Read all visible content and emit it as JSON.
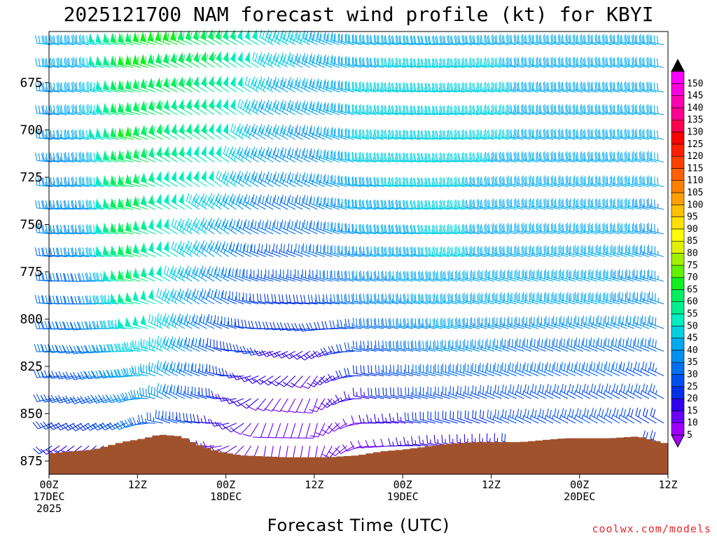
{
  "chart_data": {
    "type": "wind-barb-profile",
    "title": "2025121700 NAM forecast wind profile (kt) for KBYI",
    "xlabel": "Forecast Time (UTC)",
    "ylabel": "",
    "y_axis": {
      "unit": "hPa",
      "inverted": true,
      "range": [
        882,
        648
      ],
      "ticks": [
        675,
        700,
        725,
        750,
        775,
        800,
        825,
        850,
        875
      ]
    },
    "x_axis": {
      "unit": "forecast hour",
      "range": [
        0,
        84
      ],
      "ticks": [
        {
          "hour": 0,
          "line1": "00Z",
          "line2": "17DEC",
          "line3": "2025"
        },
        {
          "hour": 12,
          "line1": "12Z",
          "line2": "",
          "line3": ""
        },
        {
          "hour": 24,
          "line1": "00Z",
          "line2": "18DEC",
          "line3": ""
        },
        {
          "hour": 36,
          "line1": "12Z",
          "line2": "",
          "line3": ""
        },
        {
          "hour": 48,
          "line1": "00Z",
          "line2": "19DEC",
          "line3": ""
        },
        {
          "hour": 60,
          "line1": "12Z",
          "line2": "",
          "line3": ""
        },
        {
          "hour": 72,
          "line1": "00Z",
          "line2": "20DEC",
          "line3": ""
        },
        {
          "hour": 84,
          "line1": "12Z",
          "line2": "",
          "line3": ""
        }
      ]
    },
    "levels_hpa": [
      655,
      667,
      680,
      692,
      705,
      717,
      730,
      742,
      755,
      767,
      780,
      792,
      805,
      817,
      830,
      842,
      855,
      867
    ],
    "hours_step": 1,
    "wind_key_times": [
      {
        "hour": 0,
        "speed": [
          38,
          38,
          36,
          36,
          34,
          34,
          34,
          32,
          32,
          30,
          30,
          30,
          28,
          28,
          26,
          25,
          22,
          18
        ],
        "dir": [
          275,
          275,
          275,
          275,
          275,
          275,
          275,
          275,
          275,
          275,
          275,
          275,
          270,
          270,
          265,
          260,
          250,
          240
        ]
      },
      {
        "hour": 6,
        "speed": [
          42,
          42,
          40,
          40,
          40,
          38,
          38,
          36,
          36,
          34,
          32,
          30,
          30,
          28,
          26,
          24,
          20,
          16
        ],
        "dir": [
          280,
          280,
          280,
          280,
          278,
          278,
          278,
          275,
          275,
          275,
          270,
          270,
          265,
          260,
          255,
          250,
          240,
          230
        ]
      },
      {
        "hour": 12,
        "speed": [
          62,
          64,
          62,
          62,
          64,
          62,
          62,
          62,
          62,
          62,
          60,
          55,
          50,
          46,
          42,
          36,
          28,
          18
        ],
        "dir": [
          282,
          282,
          282,
          282,
          282,
          282,
          280,
          280,
          280,
          280,
          280,
          278,
          275,
          270,
          265,
          255,
          245,
          235
        ]
      },
      {
        "hour": 17,
        "speed": [
          64,
          62,
          60,
          58,
          58,
          55,
          52,
          52,
          50,
          50,
          48,
          46,
          46,
          44,
          40,
          34,
          26,
          20
        ],
        "dir": [
          290,
          292,
          295,
          298,
          300,
          300,
          300,
          300,
          300,
          300,
          300,
          300,
          300,
          300,
          300,
          300,
          290,
          280
        ]
      },
      {
        "hour": 24,
        "speed": [
          60,
          58,
          56,
          54,
          52,
          50,
          48,
          44,
          40,
          38,
          35,
          30,
          26,
          22,
          20,
          18,
          15,
          12
        ],
        "dir": [
          300,
          305,
          305,
          305,
          305,
          305,
          305,
          305,
          305,
          305,
          300,
          300,
          295,
          290,
          285,
          280,
          270,
          260
        ]
      },
      {
        "hour": 30,
        "speed": [
          48,
          46,
          44,
          42,
          40,
          38,
          36,
          32,
          28,
          26,
          24,
          22,
          20,
          18,
          14,
          12,
          10,
          10
        ],
        "dir": [
          300,
          300,
          300,
          300,
          300,
          300,
          300,
          298,
          295,
          290,
          285,
          280,
          270,
          255,
          240,
          220,
          200,
          190
        ]
      },
      {
        "hour": 37,
        "speed": [
          42,
          40,
          38,
          38,
          36,
          36,
          34,
          32,
          30,
          28,
          26,
          22,
          18,
          14,
          12,
          10,
          10,
          8
        ],
        "dir": [
          295,
          295,
          295,
          295,
          295,
          295,
          295,
          295,
          295,
          290,
          285,
          275,
          260,
          235,
          215,
          200,
          195,
          190
        ]
      },
      {
        "hour": 44,
        "speed": [
          40,
          42,
          44,
          44,
          44,
          44,
          42,
          40,
          38,
          36,
          34,
          32,
          28,
          24,
          20,
          16,
          12,
          10
        ],
        "dir": [
          280,
          280,
          280,
          280,
          280,
          278,
          278,
          278,
          278,
          280,
          280,
          280,
          280,
          280,
          280,
          280,
          270,
          260
        ]
      },
      {
        "hour": 54,
        "speed": [
          42,
          44,
          46,
          46,
          46,
          46,
          44,
          44,
          44,
          44,
          42,
          40,
          38,
          34,
          30,
          26,
          20,
          15
        ],
        "dir": [
          275,
          275,
          275,
          275,
          275,
          275,
          275,
          275,
          275,
          278,
          280,
          280,
          280,
          282,
          285,
          285,
          285,
          280
        ]
      },
      {
        "hour": 66,
        "speed": [
          40,
          42,
          42,
          42,
          42,
          40,
          40,
          40,
          40,
          40,
          38,
          38,
          36,
          32,
          28,
          26,
          24,
          18
        ],
        "dir": [
          280,
          280,
          280,
          280,
          280,
          280,
          282,
          282,
          282,
          282,
          285,
          285,
          285,
          290,
          292,
          295,
          295,
          290
        ]
      },
      {
        "hour": 78,
        "speed": [
          40,
          40,
          40,
          40,
          40,
          40,
          40,
          40,
          40,
          40,
          38,
          38,
          36,
          32,
          28,
          26,
          24,
          20
        ],
        "dir": [
          280,
          280,
          280,
          280,
          280,
          280,
          282,
          282,
          282,
          285,
          285,
          285,
          290,
          292,
          295,
          298,
          300,
          300
        ]
      },
      {
        "hour": 84,
        "speed": [
          38,
          38,
          38,
          38,
          38,
          38,
          38,
          36,
          36,
          36,
          34,
          34,
          32,
          30,
          26,
          24,
          20,
          18
        ],
        "dir": [
          280,
          280,
          280,
          280,
          280,
          282,
          282,
          282,
          282,
          285,
          285,
          288,
          290,
          292,
          295,
          298,
          300,
          300
        ]
      }
    ],
    "terrain_surface_hpa": [
      {
        "hour": 0,
        "p": 871
      },
      {
        "hour": 6,
        "p": 869
      },
      {
        "hour": 10,
        "p": 865
      },
      {
        "hour": 13,
        "p": 863
      },
      {
        "hour": 15,
        "p": 861
      },
      {
        "hour": 18,
        "p": 862
      },
      {
        "hour": 20,
        "p": 866
      },
      {
        "hour": 23,
        "p": 870
      },
      {
        "hour": 26,
        "p": 872
      },
      {
        "hour": 32,
        "p": 873
      },
      {
        "hour": 38,
        "p": 873
      },
      {
        "hour": 42,
        "p": 872
      },
      {
        "hour": 45,
        "p": 870
      },
      {
        "hour": 48,
        "p": 869
      },
      {
        "hour": 54,
        "p": 866
      },
      {
        "hour": 58,
        "p": 865
      },
      {
        "hour": 64,
        "p": 865
      },
      {
        "hour": 70,
        "p": 863
      },
      {
        "hour": 76,
        "p": 863
      },
      {
        "hour": 80,
        "p": 862
      },
      {
        "hour": 84,
        "p": 866
      }
    ],
    "colorbar": {
      "labels": [
        5,
        10,
        15,
        20,
        25,
        30,
        35,
        40,
        45,
        50,
        55,
        60,
        65,
        70,
        75,
        80,
        85,
        90,
        95,
        100,
        105,
        110,
        115,
        120,
        125,
        130,
        135,
        140,
        145,
        150
      ],
      "colors": [
        "#a000ff",
        "#6a00ff",
        "#2f00ee",
        "#0030e8",
        "#0050f0",
        "#0070f0",
        "#0090f0",
        "#00aaf0",
        "#00d0e0",
        "#00eec0",
        "#00f090",
        "#00f060",
        "#10f020",
        "#60f000",
        "#a0f000",
        "#e0f000",
        "#ffff00",
        "#ffe000",
        "#ffc000",
        "#ffa000",
        "#ff8000",
        "#ff6000",
        "#ff4000",
        "#ff2000",
        "#ff0000",
        "#ff0050",
        "#ff0090",
        "#ff00b0",
        "#ff00dd",
        "#ff00ff"
      ]
    },
    "terrain_color": "#a0522d"
  },
  "credit": "coolwx.com/models"
}
